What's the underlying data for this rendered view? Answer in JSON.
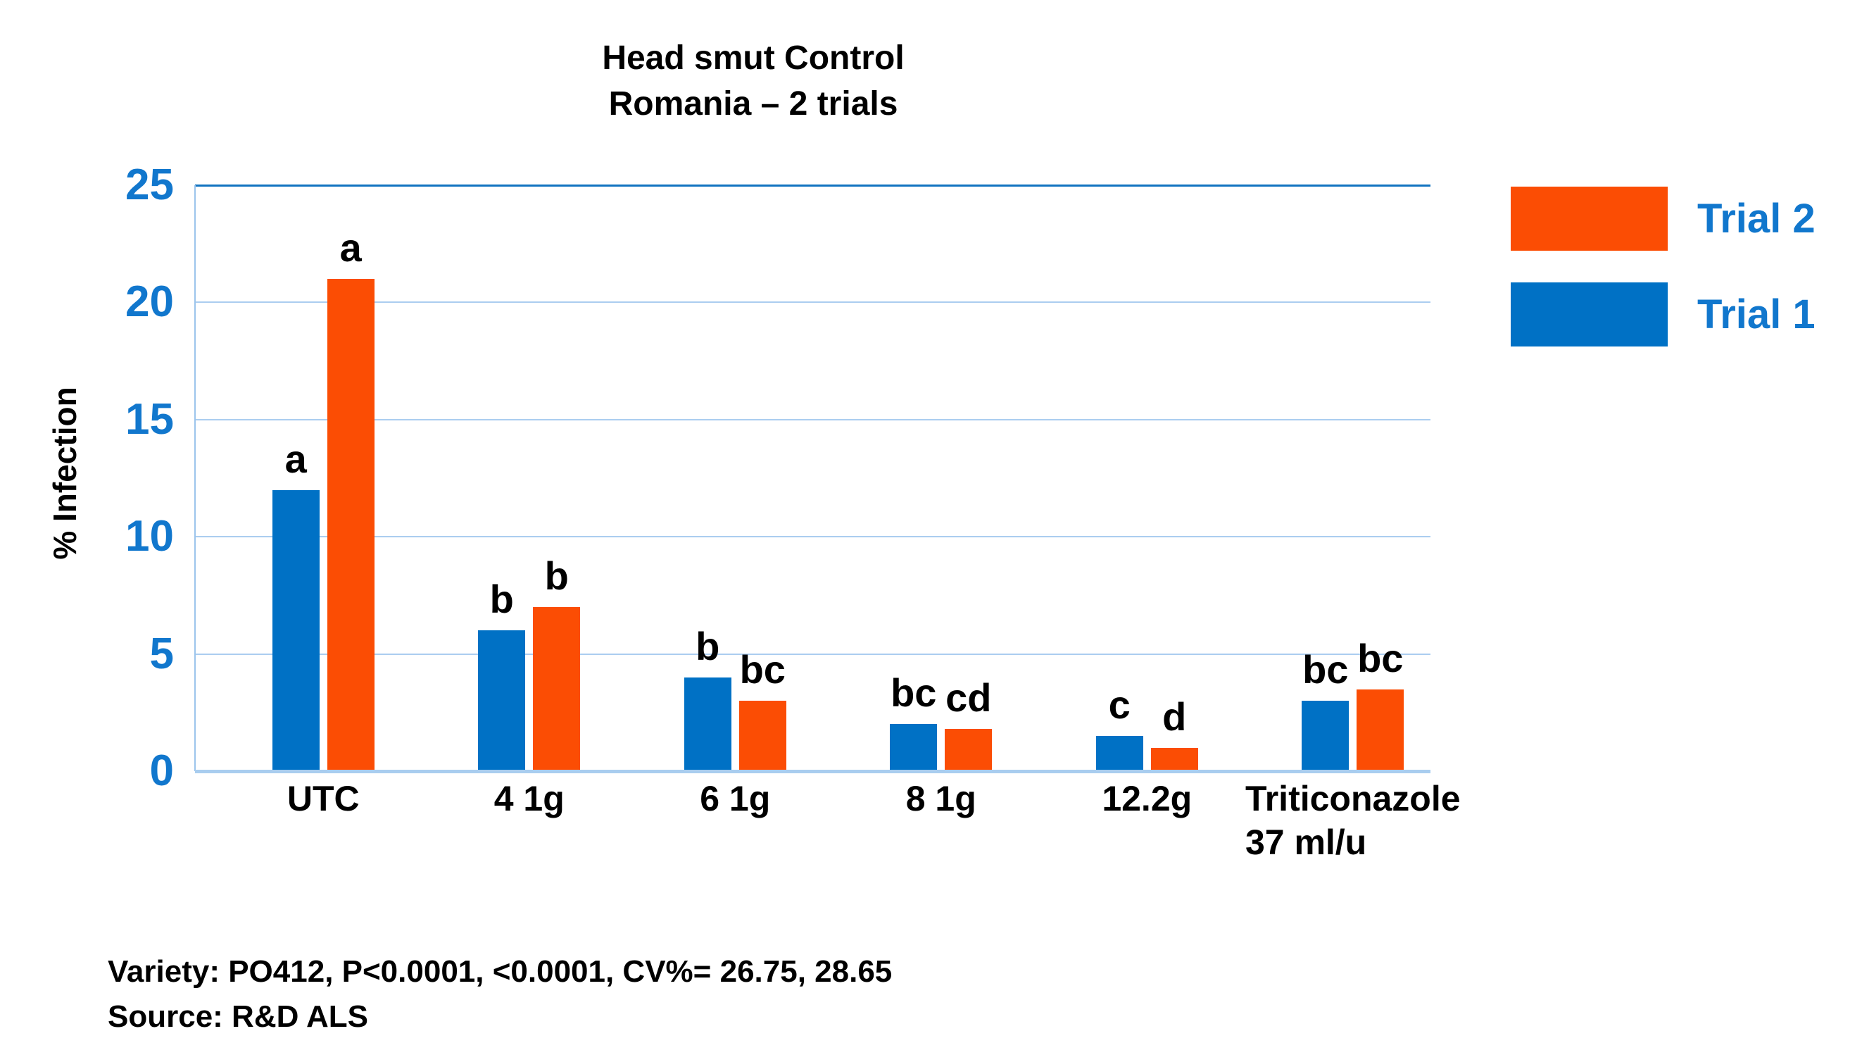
{
  "title": {
    "line1": "Head smut Control",
    "line2": "Romania – 2 trials"
  },
  "y_axis_title": "% Infection",
  "legend": {
    "items": [
      {
        "label": "Trial 2",
        "color": "#fb4d04"
      },
      {
        "label": "Trial 1",
        "color": "#0071c5"
      }
    ]
  },
  "footer": {
    "line1": "Variety: PO412, P<0.0001, <0.0001, CV%= 26.75, 28.65",
    "line2": "Source: R&D ALS"
  },
  "chart_data": {
    "type": "bar",
    "title": "Head smut Control Romania – 2 trials",
    "xlabel": "",
    "ylabel": "% Infection",
    "ylim": [
      0,
      25
    ],
    "yticks": [
      0,
      5,
      10,
      15,
      20,
      25
    ],
    "grid": "horizontal",
    "legend_position": "top-right",
    "categories": [
      "UTC",
      "4 1g",
      "6 1g",
      "8 1g",
      "12.2g",
      "Triticonazole\n37 ml/u"
    ],
    "series": [
      {
        "name": "Trial 1",
        "color": "#0071c5",
        "values": [
          12,
          6,
          4,
          2,
          1.5,
          3
        ],
        "significance_letters": [
          "a",
          "b",
          "b",
          "bc",
          "c",
          "bc"
        ]
      },
      {
        "name": "Trial 2",
        "color": "#fb4d04",
        "values": [
          21,
          7,
          3,
          1.8,
          1,
          3.5
        ],
        "significance_letters": [
          "a",
          "b",
          "bc",
          "cd",
          "d",
          "bc"
        ]
      }
    ],
    "colors": {
      "gridline": "#abcdf0",
      "top_gridline": "#1173c0",
      "axis_baseline": "#a9cdef",
      "tick_label": "#1177cd"
    }
  }
}
